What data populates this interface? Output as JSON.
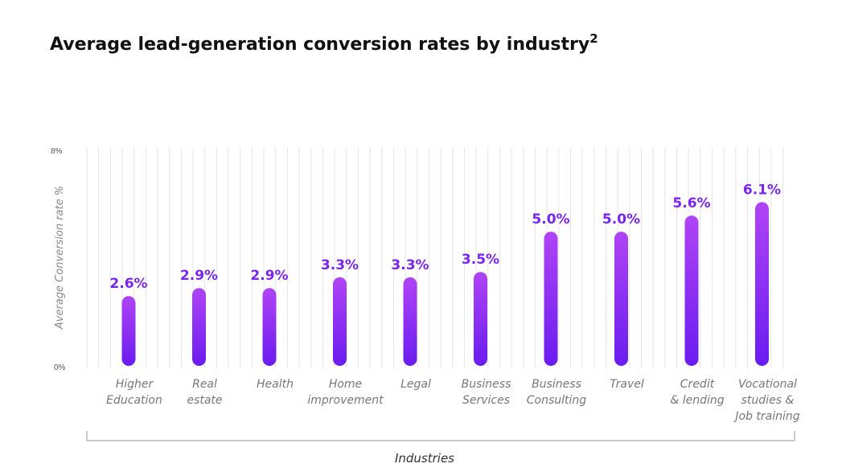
{
  "title": {
    "text": "Average lead-generation conversion rates by industry",
    "superscript": "2"
  },
  "chart_data": {
    "type": "bar",
    "ylabel": "Average Conversion rate %",
    "xlabel": "Industries",
    "ylim": [
      0,
      8
    ],
    "yticks": [
      "0%",
      "8%"
    ],
    "grid": true,
    "categories": [
      [
        "Higher",
        "Education"
      ],
      [
        "Real",
        "estate"
      ],
      [
        "Health"
      ],
      [
        "Home",
        "improvement"
      ],
      [
        "Legal"
      ],
      [
        "Business",
        "Services"
      ],
      [
        "Business",
        "Consulting"
      ],
      [
        "Travel"
      ],
      [
        "Credit",
        "& lending"
      ],
      [
        "Vocational",
        "studies &",
        "Job training"
      ]
    ],
    "values": [
      2.6,
      2.9,
      2.9,
      3.3,
      3.3,
      3.5,
      5.0,
      5.0,
      5.6,
      6.1
    ],
    "value_labels": [
      "2.6%",
      "2.9%",
      "2.9%",
      "3.3%",
      "3.3%",
      "3.5%",
      "5.0%",
      "5.0%",
      "5.6%",
      "6.1%"
    ],
    "colors": {
      "bar_top": "#b044f5",
      "bar_bottom": "#6a1cf0",
      "label": "#7a25ee",
      "grid": "#e6e6e6",
      "axis": "#999999"
    }
  }
}
